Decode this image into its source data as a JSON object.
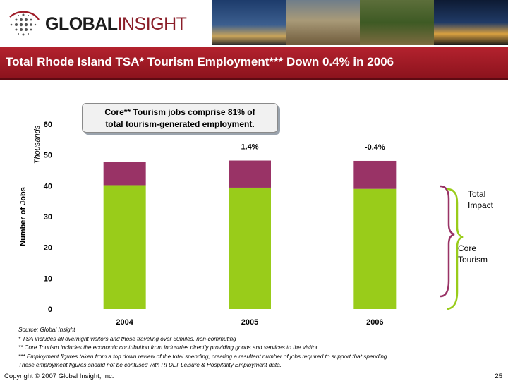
{
  "header": {
    "logo_text_1": "GLOBAL",
    "logo_text_2": "INSIGHT"
  },
  "title": "Total Rhode Island TSA* Tourism Employment*** Down 0.4% in 2006",
  "callout": {
    "line1": "Core** Tourism jobs comprise 81% of",
    "line2": "total tourism-generated employment."
  },
  "bracket_labels": {
    "total_impact_1": "Total",
    "total_impact_2": "Impact",
    "core_tourism_1": "Core",
    "core_tourism_2": "Tourism"
  },
  "chart_data": {
    "type": "bar",
    "stacked": true,
    "categories": [
      "2004",
      "2005",
      "2006"
    ],
    "series": [
      {
        "name": "Core Tourism",
        "values": [
          40.2,
          39.4,
          39.0
        ],
        "color": "#99cc1a"
      },
      {
        "name": "Total Impact",
        "values": [
          7.5,
          8.8,
          9.1
        ],
        "color": "#993366"
      }
    ],
    "ylabel": "Number of Jobs",
    "yunit": "Thousands",
    "ylim": [
      0,
      60
    ],
    "yticks": [
      0,
      10,
      20,
      30,
      40,
      50,
      60
    ],
    "change_labels": [
      "",
      "1.4%",
      "-0.4%"
    ],
    "grid": false
  },
  "footnotes": [
    "Source:  Global Insight",
    "* TSA includes all overnight visitors and those traveling over 50miles, non-commuting",
    "** Core Tourism includes the economic contribution from industries directly providing goods and services to the visitor.",
    "*** Employment figures taken from a top down review of the total spending, creating a resultant number of jobs required to support that spending.",
    "These employment figures should not be confused with RI DLT Leisure & Hospitality Employment data."
  ],
  "copyright": "Copyright © 2007 Global Insight, Inc.",
  "page_number": "25"
}
